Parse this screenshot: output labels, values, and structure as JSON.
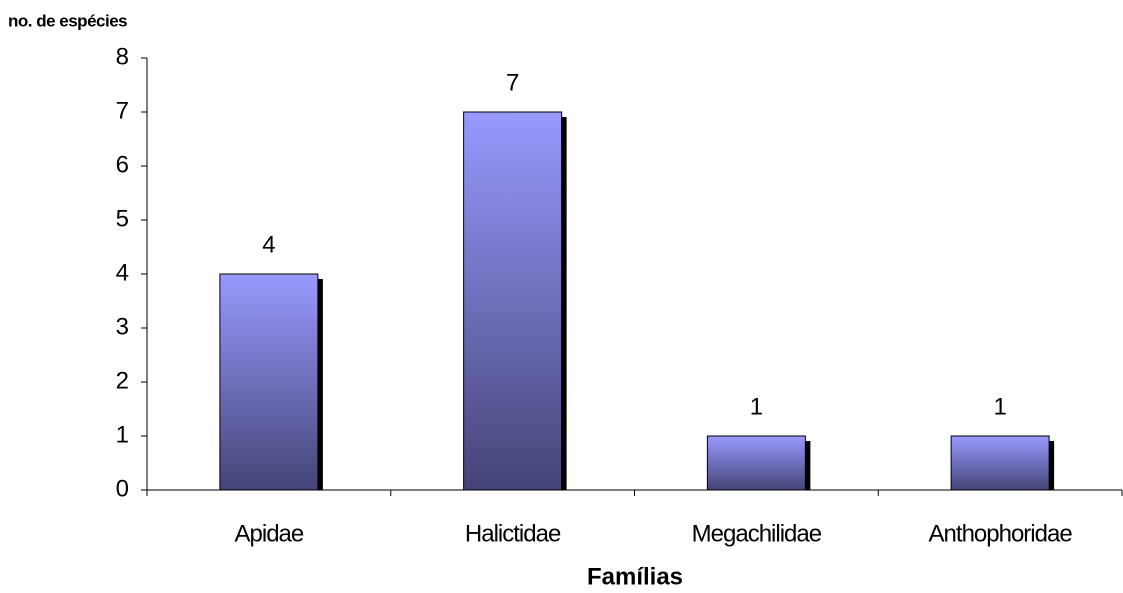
{
  "chart_data": {
    "type": "bar",
    "y_label": "no. de espécies",
    "x_label": "Famílias",
    "categories": [
      "Apidae",
      "Halictidae",
      "Megachilidae",
      "Anthophoridae"
    ],
    "values": [
      4,
      7,
      1,
      1
    ],
    "color": "#9999ff",
    "gradient_to": "#444477",
    "shadow": "#000000",
    "ylim": [
      0,
      8
    ],
    "yticks": [
      0,
      1,
      2,
      3,
      4,
      5,
      6,
      7,
      8
    ],
    "grid": false
  }
}
